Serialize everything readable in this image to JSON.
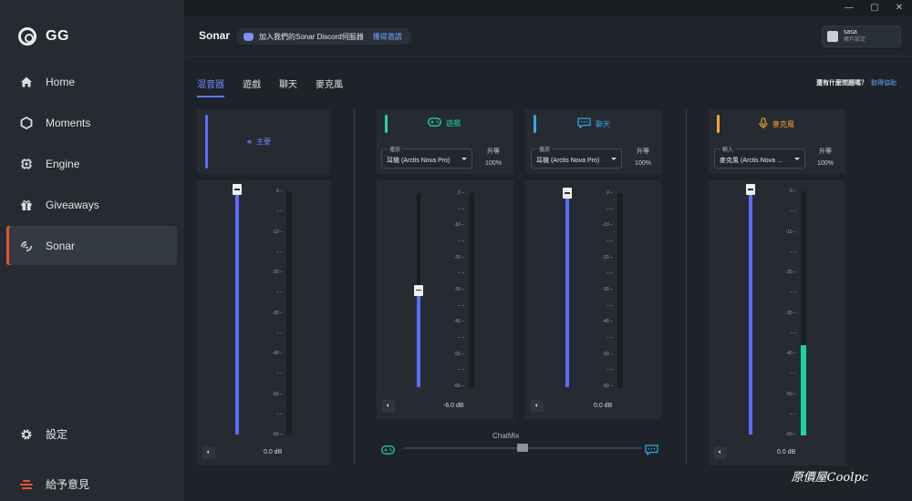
{
  "app": {
    "logo_text": "GG"
  },
  "sidebar": {
    "items": [
      {
        "label": "Home",
        "icon": "home-icon"
      },
      {
        "label": "Moments",
        "icon": "hexagon-icon"
      },
      {
        "label": "Engine",
        "icon": "chip-icon"
      },
      {
        "label": "Giveaways",
        "icon": "gift-icon"
      },
      {
        "label": "Sonar",
        "icon": "sonar-icon",
        "active": true
      }
    ],
    "settings_label": "設定",
    "feedback_label": "給予意見"
  },
  "header": {
    "title": "Sonar",
    "discord_text": "加入我們的Sonar Discord伺服器",
    "discord_link": "獲得邀請",
    "account_name": "sasa",
    "account_sub": "帳戶設定"
  },
  "tabs": [
    "混音器",
    "遊戲",
    "聊天",
    "麥克風"
  ],
  "help": {
    "text": "還有什麼問題嗎？",
    "link": "取得協助"
  },
  "ticks": [
    "0",
    "–",
    "-10",
    "–",
    "-20",
    "–",
    "-30",
    "–",
    "-40",
    "–",
    "-50",
    "–",
    "-60"
  ],
  "channels": {
    "master": {
      "label": "主要",
      "volume": "0.0 dB",
      "level": 1.0,
      "accent": "#5c6bff"
    },
    "game": {
      "label": "遊戲",
      "device_legend": "播放",
      "device": "耳機 (Arctis Nova Pro)",
      "boost_label": "升等",
      "boost_value": "100%",
      "volume": "-6.0 dB",
      "level": 0.5,
      "accent": "#22d3a6"
    },
    "chat": {
      "label": "聊天",
      "device_legend": "播放",
      "device": "耳機 (Arctis Nova Pro)",
      "boost_label": "升等",
      "boost_value": "100%",
      "volume": "0.0 dB",
      "level": 1.0,
      "accent": "#33a9e6"
    },
    "mic": {
      "label": "麥克風",
      "device_legend": "輸入",
      "device": "麥克風 (Arctis Nova ...",
      "boost_label": "升等",
      "boost_value": "100%",
      "volume": "0.0 dB",
      "level": 1.0,
      "meter_level": 0.37,
      "accent": "#f2a532"
    }
  },
  "chatmix": {
    "label": "ChatMix",
    "position": 0.5
  },
  "watermark": "原價屋Coolpc"
}
